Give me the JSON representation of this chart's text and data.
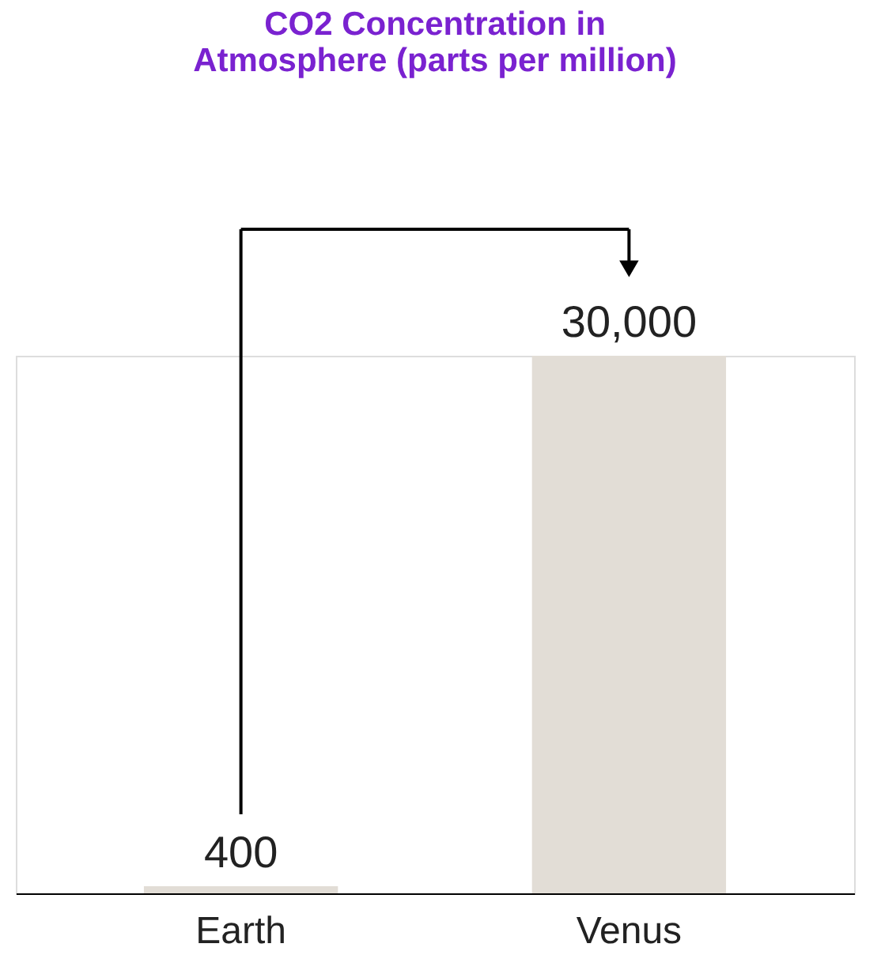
{
  "chart_data": {
    "type": "bar",
    "title": "CO2 Concentration in\nAtmosphere (parts per million)",
    "categories": [
      "Earth",
      "Venus"
    ],
    "values": [
      400,
      30000
    ],
    "color": "#e2ddd6",
    "data_labels": true,
    "value_labels": [
      "400",
      "30,000"
    ]
  }
}
